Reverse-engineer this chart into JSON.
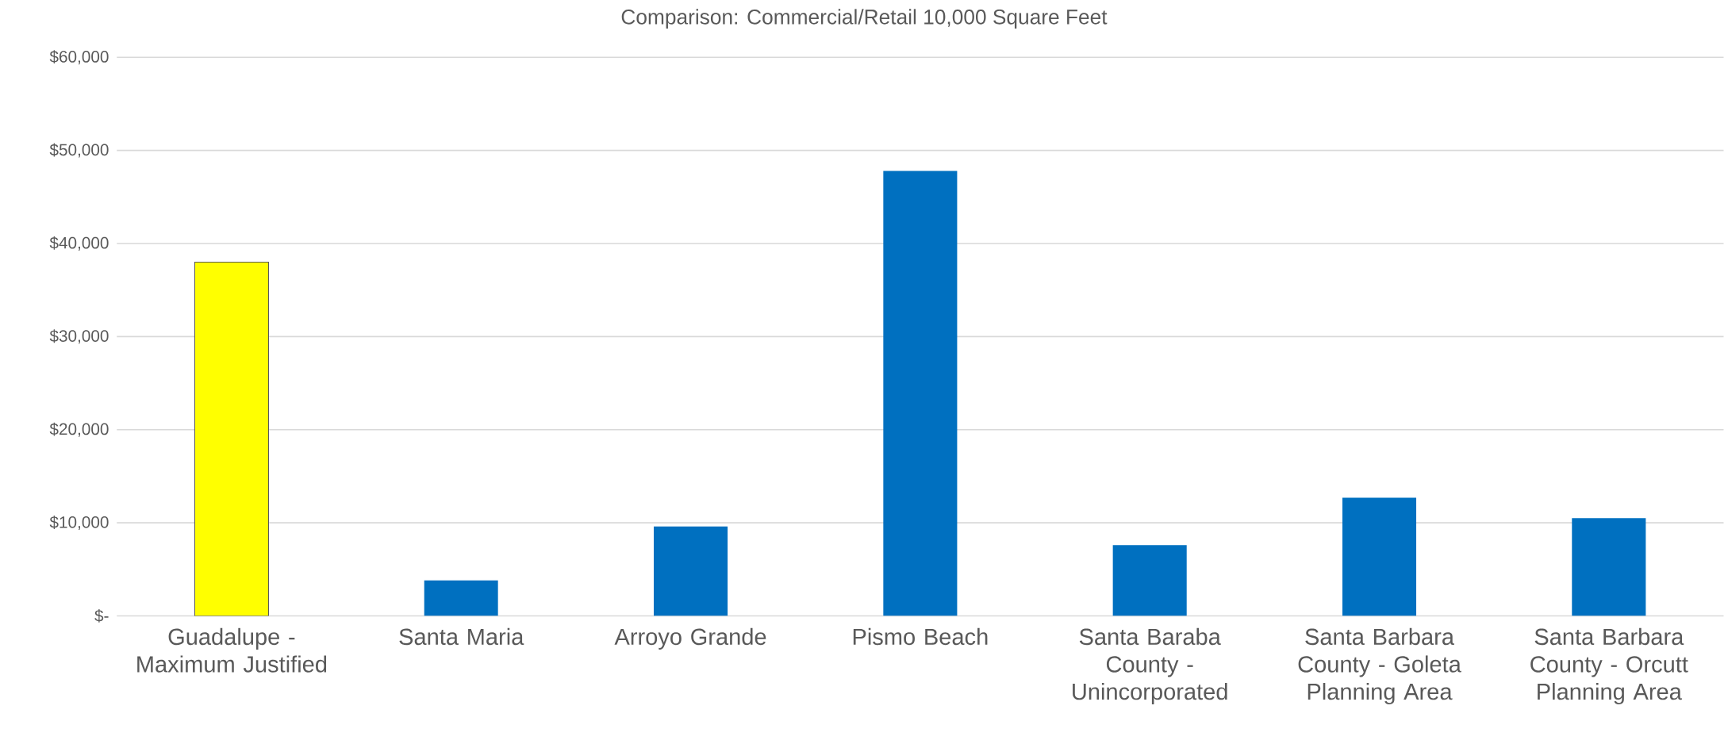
{
  "chart_data": {
    "type": "bar",
    "title": "Comparison: Commercial/Retail 10,000 Square Feet",
    "categories": [
      "Guadalupe - Maximum Justified",
      "Santa Maria",
      "Arroyo Grande",
      "Pismo Beach",
      "Santa Baraba County - Unincorporated",
      "Santa Barbara County - Goleta Planning Area",
      "Santa Barbara County - Orcutt Planning Area"
    ],
    "values": [
      38000,
      3800,
      9600,
      47800,
      7600,
      12700,
      10500
    ],
    "colors": [
      "#ffff00",
      "#0070c0",
      "#0070c0",
      "#0070c0",
      "#0070c0",
      "#0070c0",
      "#0070c0"
    ],
    "ylim": [
      0,
      60000
    ],
    "yticks": [
      {
        "value": 0,
        "label": "$-"
      },
      {
        "value": 10000,
        "label": "$10,000"
      },
      {
        "value": 20000,
        "label": "$20,000"
      },
      {
        "value": 30000,
        "label": "$30,000"
      },
      {
        "value": 40000,
        "label": "$40,000"
      },
      {
        "value": 50000,
        "label": "$50,000"
      },
      {
        "value": 60000,
        "label": "$60,000"
      }
    ],
    "grid": "y"
  }
}
